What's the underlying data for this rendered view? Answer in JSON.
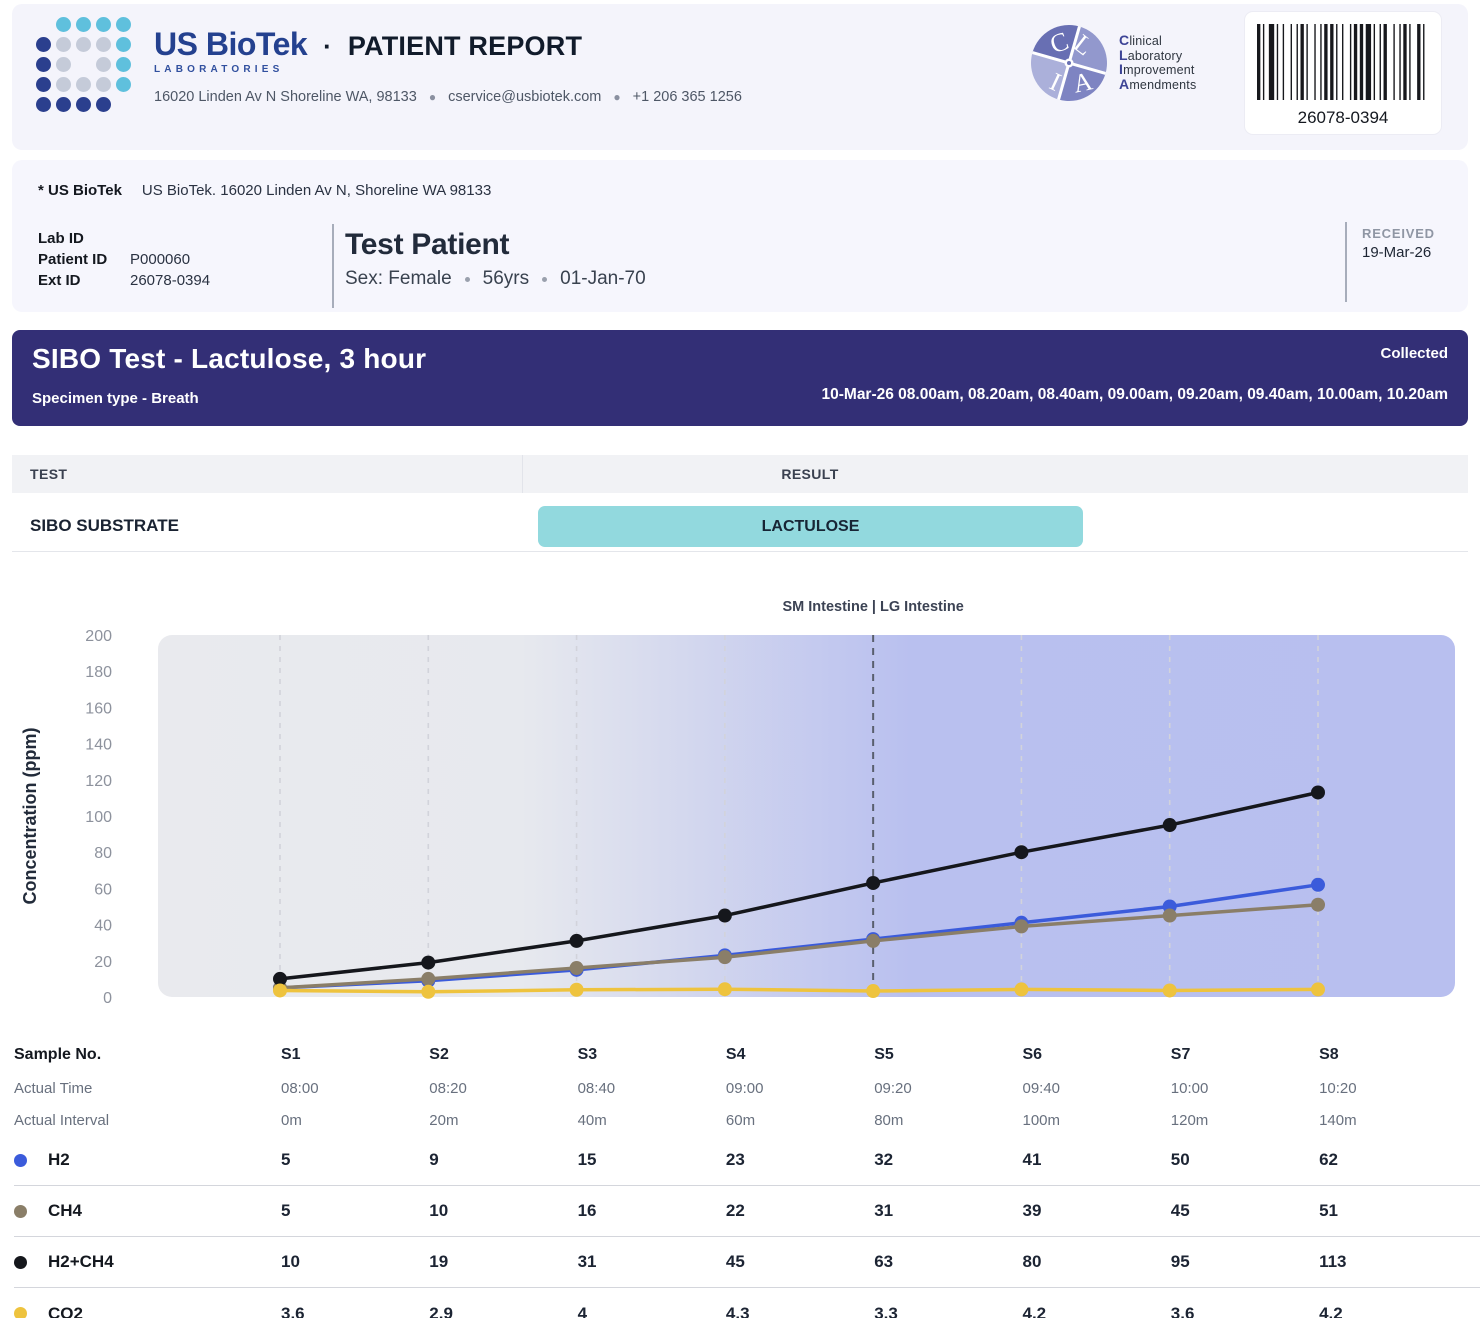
{
  "header": {
    "brand": "US BioTek",
    "brand_sub": "LABORATORIES",
    "separator": "·",
    "report_title": "PATIENT REPORT",
    "address": "16020 Linden Av N Shoreline WA, 98133",
    "email": "cservice@usbiotek.com",
    "phone": "+1 206 365 1256",
    "logo_colors": {
      "db": "#2b3f8e",
      "lb": "#5fc0dd",
      "gy": "#c5cbd9"
    },
    "clia": {
      "letters": "CLIA",
      "lines": [
        {
          "b": "C",
          "rest": "linical"
        },
        {
          "b": "L",
          "rest": "aboratory"
        },
        {
          "b": "I",
          "rest": "mprovement"
        },
        {
          "b": "A",
          "rest": "mendments"
        }
      ]
    },
    "barcode_value": "26078-0394"
  },
  "patient": {
    "lab_line_bold": "* US BioTek",
    "lab_line": "US BioTek. 16020 Linden Av N, Shoreline WA 98133",
    "ids": [
      {
        "label": "Lab ID",
        "value": ""
      },
      {
        "label": "Patient ID",
        "value": "P000060"
      },
      {
        "label": "Ext ID",
        "value": "26078-0394"
      }
    ],
    "name": "Test Patient",
    "sex": "Sex: Female",
    "age": "56yrs",
    "dob": "01-Jan-70",
    "received_label": "RECEIVED",
    "received_date": "19-Mar-26"
  },
  "banner": {
    "title": "SIBO Test - Lactulose, 3 hour",
    "subtitle": "Specimen type - Breath",
    "collected_label": "Collected",
    "collected_times": "10-Mar-26 08.00am, 08.20am, 08.40am, 09.00am, 09.20am, 09.40am, 10.00am, 10.20am"
  },
  "result_strip": {
    "test_header": "TEST",
    "result_header": "RESULT",
    "test_name": "SIBO SUBSTRATE",
    "result_value": "LACTULOSE",
    "result_color": "#92d9de"
  },
  "chart_data": {
    "type": "line",
    "title": "SM Intestine | LG Intestine",
    "ylabel": "Concentration (ppm)",
    "ylim": [
      0,
      200
    ],
    "ytick_step": 20,
    "grid": "vertical-dashed",
    "legend_position": "table-below",
    "categories": [
      "S1",
      "S2",
      "S3",
      "S4",
      "S5",
      "S6",
      "S7",
      "S8"
    ],
    "divider_index": 4,
    "plot_bg_left": "#e9eaee",
    "plot_bg_right": "#b8bfef",
    "series": [
      {
        "name": "H2",
        "color": "#3b5bdb",
        "values": [
          5,
          9,
          15,
          23,
          32,
          41,
          50,
          62
        ]
      },
      {
        "name": "CH4",
        "color": "#8a7e68",
        "values": [
          5,
          10,
          16,
          22,
          31,
          39,
          45,
          51
        ]
      },
      {
        "name": "H2+CH4",
        "color": "#15171c",
        "values": [
          10,
          19,
          31,
          45,
          63,
          80,
          95,
          113
        ]
      },
      {
        "name": "CO2",
        "color": "#eec33e",
        "values": [
          3.6,
          2.9,
          4.0,
          4.3,
          3.3,
          4.2,
          3.6,
          4.2
        ]
      }
    ]
  },
  "sample_table": {
    "header_label": "Sample No.",
    "samples": [
      "S1",
      "S2",
      "S3",
      "S4",
      "S5",
      "S6",
      "S7",
      "S8"
    ],
    "actual_time_label": "Actual Time",
    "actual_times": [
      "08:00",
      "08:20",
      "08:40",
      "09:00",
      "09:20",
      "09:40",
      "10:00",
      "10:20"
    ],
    "actual_interval_label": "Actual Interval",
    "intervals": [
      "0m",
      "20m",
      "40m",
      "60m",
      "80m",
      "100m",
      "120m",
      "140m"
    ]
  }
}
